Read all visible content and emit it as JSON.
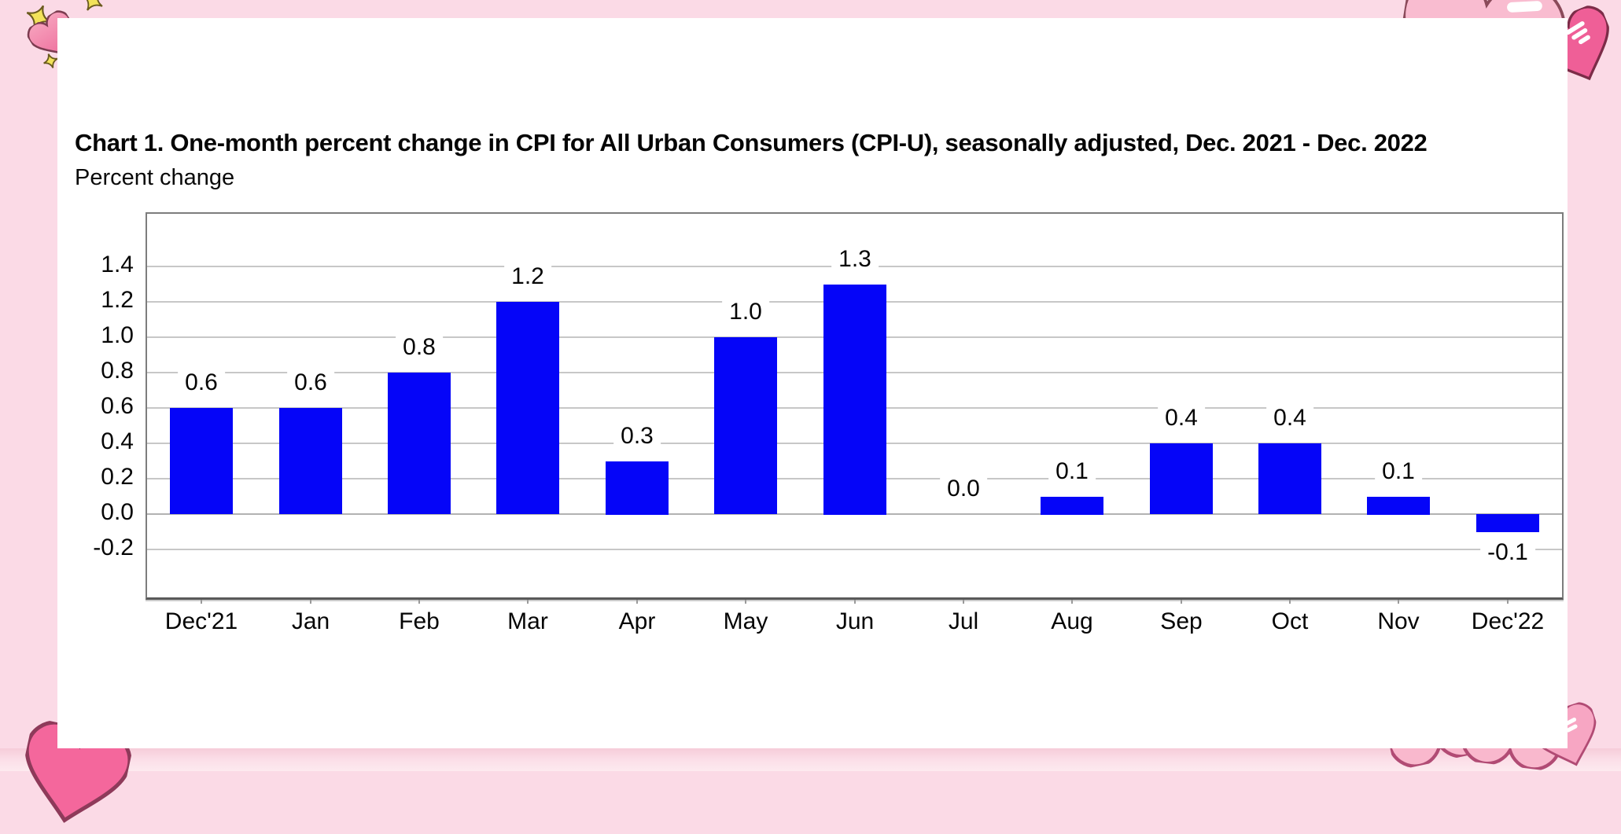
{
  "page": {
    "background_color": "#fbdae6",
    "card_color": "#ffffff",
    "bottom_band_colors": [
      "#f6ccd9",
      "#fdeaef"
    ]
  },
  "chart_data": {
    "type": "bar",
    "title": "Chart 1. One-month percent change in CPI for All Urban Consumers (CPI-U), seasonally adjusted, Dec. 2021 - Dec. 2022",
    "ylabel": "Percent change",
    "xlabel": "",
    "categories": [
      "Dec'21",
      "Jan",
      "Feb",
      "Mar",
      "Apr",
      "May",
      "Jun",
      "Jul",
      "Aug",
      "Sep",
      "Oct",
      "Nov",
      "Dec'22"
    ],
    "values": [
      0.6,
      0.6,
      0.8,
      1.2,
      0.3,
      1.0,
      1.3,
      0.0,
      0.1,
      0.4,
      0.4,
      0.1,
      -0.1
    ],
    "data_labels": [
      "0.6",
      "0.6",
      "0.8",
      "1.2",
      "0.3",
      "1.0",
      "1.3",
      "0.0",
      "0.1",
      "0.4",
      "0.4",
      "0.1",
      "-0.1"
    ],
    "y_ticks": [
      1.4,
      1.2,
      1.0,
      0.8,
      0.6,
      0.4,
      0.2,
      0.0,
      -0.2
    ],
    "y_tick_labels": [
      "1.4",
      "1.2",
      "1.0",
      "0.8",
      "0.6",
      "0.4",
      "0.2",
      "0.0",
      "-0.2"
    ],
    "ylim": [
      -0.49,
      1.7
    ],
    "grid": true,
    "legend": "none",
    "bar_color": "#0505f8",
    "gridline_color": "#c7c7c7",
    "frame_color": "#7d7d7d",
    "label_color": "#050505"
  },
  "decorations": {
    "sparkle_color": "#f2e25a",
    "sparkle_outline": "#6b5b1e",
    "heart_light_pink": "#f9bcd0",
    "heart_medium_pink": "#f4679c",
    "heart_dark_pink": "#ef5f97",
    "heart_outline": "#8a4057",
    "items": [
      "sparkle-top-left-large",
      "sparkle-top-left-small",
      "sparkle-top-edge",
      "heart-top-left",
      "heart-top-right-light",
      "heart-top-right-dark",
      "heart-bottom-left",
      "heart-bottom-right-1",
      "heart-bottom-right-2",
      "heart-bottom-right-shine"
    ]
  }
}
